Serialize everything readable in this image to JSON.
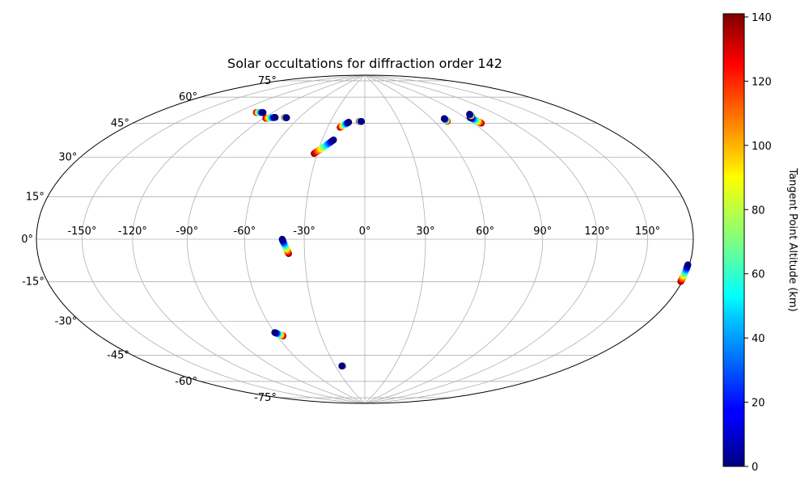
{
  "chart_data": {
    "type": "scatter",
    "projection": "hammer",
    "title": "Solar occultations for diffraction order 142",
    "xlabel": "",
    "ylabel": "",
    "grid": true,
    "longitude_ticks": [
      -150,
      -120,
      -90,
      -60,
      -30,
      0,
      30,
      60,
      90,
      120,
      150
    ],
    "longitude_tick_labels": [
      "-150°",
      "-120°",
      "-90°",
      "-60°",
      "-30°",
      "0°",
      "30°",
      "60°",
      "90°",
      "120°",
      "150°"
    ],
    "latitude_ticks": [
      -75,
      -60,
      -45,
      -30,
      -15,
      0,
      15,
      30,
      45,
      60,
      75
    ],
    "latitude_tick_labels": [
      "-75°",
      "-60°",
      "-45°",
      "-30°",
      "-15°",
      "0°",
      "15°",
      "30°",
      "45°",
      "60°",
      "75°"
    ],
    "colorbar": {
      "label": "Tangent Point Altitude (km)",
      "colormap": "jet",
      "range": [
        0,
        141
      ],
      "ticks": [
        0,
        20,
        40,
        60,
        80,
        100,
        120,
        140
      ],
      "tick_labels": [
        "0",
        "20",
        "40",
        "60",
        "80",
        "100",
        "120",
        "140"
      ]
    },
    "tracks": [
      {
        "start": [
          -98,
          62
        ],
        "end": [
          -104,
          61.5
        ],
        "alt_range": [
          0,
          141
        ]
      },
      {
        "start": [
          -81,
          60.5
        ],
        "end": [
          -88,
          59.5
        ],
        "alt_range": [
          0,
          141
        ]
      },
      {
        "start": [
          -71,
          61
        ],
        "end": [
          -73,
          61
        ],
        "alt_range": [
          0,
          141
        ]
      },
      {
        "start": [
          -14,
          60.5
        ],
        "end": [
          -20,
          57.5
        ],
        "alt_range": [
          0,
          141
        ]
      },
      {
        "start": [
          -3,
          61
        ],
        "end": [
          -5,
          61
        ],
        "alt_range": [
          0,
          141
        ]
      },
      {
        "start": [
          -22,
          50.5
        ],
        "end": [
          -32,
          43
        ],
        "alt_range": [
          0,
          141
        ]
      },
      {
        "start": [
          71,
          60.5
        ],
        "end": [
          71,
          59
        ],
        "alt_range": [
          0,
          141
        ]
      },
      {
        "start": [
          94,
          59.5
        ],
        "end": [
          96,
          56
        ],
        "alt_range": [
          0,
          141
        ]
      },
      {
        "start": [
          98,
          61
        ],
        "end": [
          97,
          60
        ],
        "alt_range": [
          0,
          141
        ]
      },
      {
        "start": [
          -41,
          0
        ],
        "end": [
          -38,
          -7
        ],
        "alt_range": [
          0,
          141
        ]
      },
      {
        "start": [
          179,
          -9
        ],
        "end": [
          179,
          -15
        ],
        "alt_range": [
          0,
          141
        ]
      },
      {
        "start": [
          -60,
          -46
        ],
        "end": [
          -56,
          -48
        ],
        "alt_range": [
          0,
          141
        ]
      },
      {
        "start": [
          -23.5,
          -66
        ],
        "end": [
          -22.5,
          -66
        ],
        "alt_range": [
          0,
          141
        ]
      }
    ]
  }
}
